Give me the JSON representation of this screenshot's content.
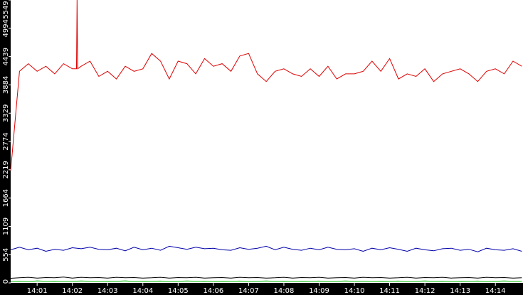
{
  "chart_data": {
    "type": "line",
    "title": "",
    "xlabel": "",
    "ylabel": "",
    "grid": false,
    "colors": {
      "background": "#ffffff",
      "axis_band": "#000000",
      "axis_text": "#ffffff",
      "series_red": "#dd0000",
      "series_blue": "#0000aa",
      "series_black": "#000000",
      "series_green": "#00bb00"
    },
    "xlim": [
      "14:00:15",
      "14:14:47"
    ],
    "ylim": [
      0,
      5549
    ],
    "y_ticks": [
      {
        "value": 0,
        "label": "0"
      },
      {
        "value": 554,
        "label": "554"
      },
      {
        "value": 1109,
        "label": "1109"
      },
      {
        "value": 1664,
        "label": "1664"
      },
      {
        "value": 2219,
        "label": "2219"
      },
      {
        "value": 2774,
        "label": "2774"
      },
      {
        "value": 3329,
        "label": "3329"
      },
      {
        "value": 3884,
        "label": "3884"
      },
      {
        "value": 4439,
        "label": "4439"
      },
      {
        "value": 4994,
        "label": "4994"
      },
      {
        "value": 5549,
        "label": "5549"
      }
    ],
    "x_ticks": [
      {
        "value": "14:01",
        "label": "14:01"
      },
      {
        "value": "14:02",
        "label": "14:02"
      },
      {
        "value": "14:03",
        "label": "14:03"
      },
      {
        "value": "14:04",
        "label": "14:04"
      },
      {
        "value": "14:05",
        "label": "14:05"
      },
      {
        "value": "14:06",
        "label": "14:06"
      },
      {
        "value": "14:07",
        "label": "14:07"
      },
      {
        "value": "14:08",
        "label": "14:08"
      },
      {
        "value": "14:09",
        "label": "14:09"
      },
      {
        "value": "14:10",
        "label": "14:10"
      },
      {
        "value": "14:11",
        "label": "14:11"
      },
      {
        "value": "14:12",
        "label": "14:12"
      },
      {
        "value": "14:13",
        "label": "14:13"
      },
      {
        "value": "14:14",
        "label": "14:14"
      }
    ],
    "x": [
      "14:00:15",
      "14:00:30",
      "14:00:45",
      "14:01:00",
      "14:01:15",
      "14:01:30",
      "14:01:45",
      "14:02:00",
      "14:02:15",
      "14:02:30",
      "14:02:45",
      "14:03:00",
      "14:03:15",
      "14:03:30",
      "14:03:45",
      "14:04:00",
      "14:04:15",
      "14:04:30",
      "14:04:45",
      "14:05:00",
      "14:05:15",
      "14:05:30",
      "14:05:45",
      "14:06:00",
      "14:06:15",
      "14:06:30",
      "14:06:45",
      "14:07:00",
      "14:07:15",
      "14:07:30",
      "14:07:45",
      "14:08:00",
      "14:08:15",
      "14:08:30",
      "14:08:45",
      "14:09:00",
      "14:09:15",
      "14:09:30",
      "14:09:45",
      "14:10:00",
      "14:10:15",
      "14:10:30",
      "14:10:45",
      "14:11:00",
      "14:11:15",
      "14:11:30",
      "14:11:45",
      "14:12:00",
      "14:12:15",
      "14:12:30",
      "14:12:45",
      "14:13:00",
      "14:13:15",
      "14:13:30",
      "14:13:45",
      "14:14:00",
      "14:14:15",
      "14:14:30",
      "14:14:45"
    ],
    "series": [
      {
        "color": "#dd0000",
        "values": [
          2200,
          4150,
          4300,
          4150,
          4250,
          4100,
          4300,
          4200,
          4250,
          4350,
          4050,
          4150,
          4000,
          4250,
          4150,
          4200,
          4500,
          4350,
          4000,
          4350,
          4300,
          4100,
          4400,
          4250,
          4300,
          4150,
          4450,
          4500,
          4100,
          3950,
          4150,
          4200,
          4100,
          4050,
          4200,
          4050,
          4250,
          4000,
          4100,
          4100,
          4150,
          4350,
          4150,
          4400,
          4000,
          4100,
          4050,
          4200,
          3950,
          4100,
          4150,
          4200,
          4100,
          3950,
          4150,
          4200,
          4100,
          4350,
          4250
        ]
      },
      {
        "color": "#0000aa",
        "values": [
          650,
          700,
          650,
          680,
          620,
          660,
          640,
          690,
          670,
          700,
          660,
          650,
          680,
          630,
          700,
          650,
          680,
          640,
          720,
          690,
          660,
          700,
          670,
          680,
          650,
          640,
          690,
          660,
          680,
          720,
          650,
          700,
          660,
          640,
          680,
          650,
          700,
          660,
          650,
          670,
          620,
          680,
          650,
          690,
          660,
          620,
          680,
          650,
          630,
          670,
          680,
          640,
          660,
          610,
          680,
          650,
          640,
          670,
          620
        ]
      },
      {
        "color": "#000000",
        "values": [
          90,
          100,
          110,
          95,
          105,
          100,
          115,
          95,
          110,
          100,
          105,
          95,
          110,
          100,
          105,
          95,
          100,
          110,
          95,
          105,
          100,
          110,
          95,
          100,
          105,
          95,
          110,
          100,
          105,
          95,
          100,
          110,
          95,
          105,
          100,
          110,
          95,
          100,
          105,
          95,
          110,
          100,
          105,
          95,
          100,
          110,
          95,
          105,
          100,
          110,
          95,
          100,
          105,
          95,
          110,
          100,
          105,
          95,
          100
        ]
      },
      {
        "color": "#00bb00",
        "values": [
          30,
          35,
          25,
          40,
          30,
          35,
          28,
          32,
          38,
          30,
          25,
          35,
          30,
          40,
          28,
          33,
          30,
          36,
          25,
          32,
          38,
          30,
          35,
          28,
          33,
          30,
          36,
          25,
          32,
          38,
          30,
          35,
          28,
          33,
          30,
          36,
          25,
          32,
          38,
          30,
          35,
          28,
          33,
          30,
          36,
          25,
          32,
          38,
          30,
          35,
          28,
          33,
          30,
          36,
          25,
          32,
          38,
          30,
          35
        ]
      }
    ],
    "spikes": [
      {
        "series_index": 0,
        "x": "14:02:08",
        "value": 5549
      }
    ]
  }
}
